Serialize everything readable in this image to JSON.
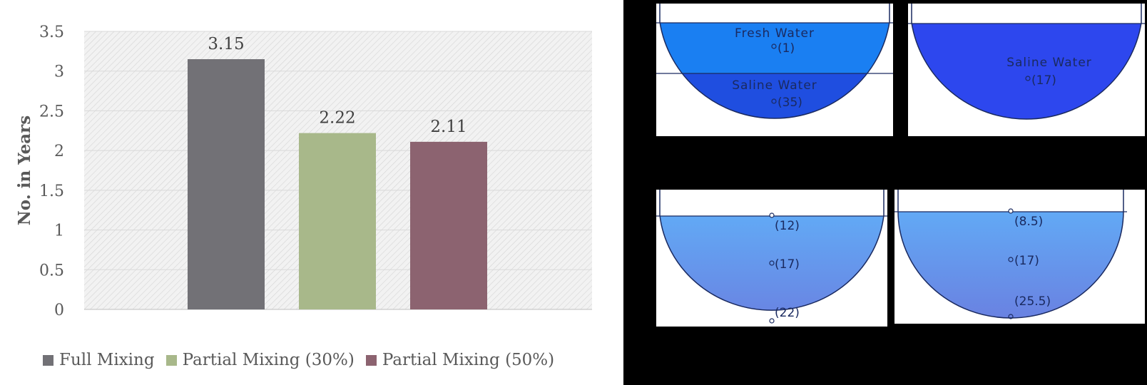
{
  "chart_data": {
    "type": "bar",
    "title": "",
    "xlabel": "",
    "ylabel": "No. in Years",
    "categories": [
      "Full Mixing",
      "Partial Mixing (30%)",
      "Partial Mixing (50%)"
    ],
    "values": [
      3.15,
      2.22,
      2.11
    ],
    "data_labels": [
      "3.15",
      "2.22",
      "2.11"
    ],
    "ylim": [
      0,
      3.5
    ],
    "yticks": [
      "0",
      "0.5",
      "1",
      "1.5",
      "2",
      "2.5",
      "3",
      "3.5"
    ],
    "grid": true,
    "legend_position": "bottom",
    "colors": [
      "#727176",
      "#a8b88a",
      "#8c6370"
    ],
    "plot_background": "hatched-grey"
  },
  "tanks": [
    {
      "layers": [
        {
          "name": "Fresh Water",
          "value": "(1)",
          "color": "#1a7ff2"
        },
        {
          "name": "Saline Water",
          "value": "(35)",
          "color": "#1f4ee0"
        }
      ]
    },
    {
      "layers": [
        {
          "name": "Saline Water",
          "value": "(17)",
          "color": "#2d47ee"
        }
      ]
    },
    {
      "gradient": [
        "#62a9f5",
        "#6a7fe0"
      ],
      "points": [
        "(12)",
        "(17)",
        "(22)"
      ]
    },
    {
      "gradient": [
        "#62a9f5",
        "#6a7fe0"
      ],
      "points": [
        "(8.5)",
        "(17)",
        "(25.5)"
      ]
    }
  ]
}
